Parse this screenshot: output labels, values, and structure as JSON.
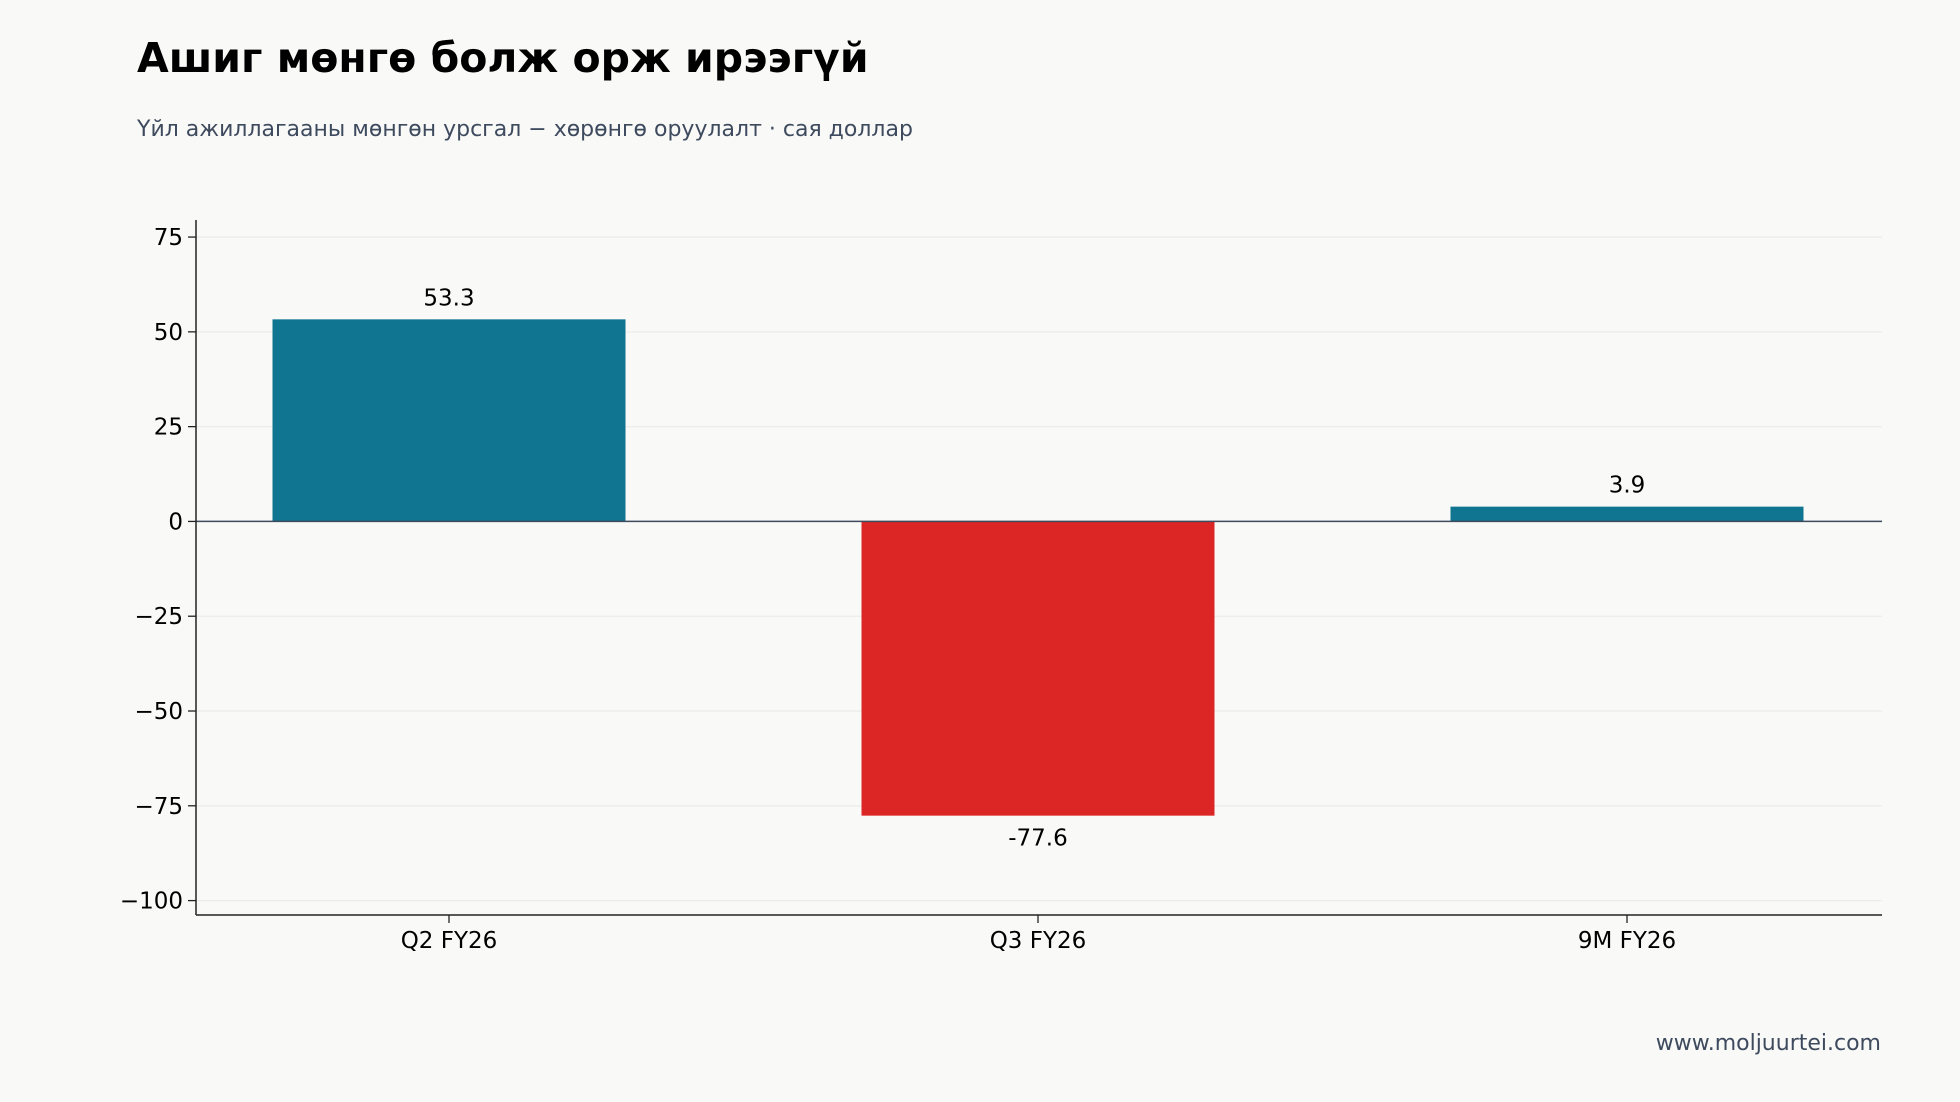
{
  "chart_data": {
    "type": "bar",
    "title": "Ашиг мөнгө болж орж ирээгүй",
    "subtitle": "Үйл ажиллагааны мөнгөн урсгал − хөрөнгө оруулалт · сая доллар",
    "categories": [
      "Q2 FY26",
      "Q3 FY26",
      "9M FY26"
    ],
    "values": [
      53.3,
      -77.6,
      3.9
    ],
    "data_labels": [
      "53.3",
      "-77.6",
      "3.9"
    ],
    "xlabel": "",
    "ylabel": "",
    "ylim": [
      -103.8,
      79.5
    ],
    "yticks": [
      75,
      50,
      25,
      0,
      -25,
      -50,
      -75,
      -100
    ],
    "ytick_labels": [
      "75",
      "50",
      "25",
      "0",
      "−25",
      "−50",
      "−75",
      "−100"
    ],
    "grid": true,
    "legend": "none",
    "colors": {
      "positive": "#107591",
      "negative": "#dc2626",
      "zero_line": "#3e4a5e",
      "grid": "#ececea",
      "axis": "#222222",
      "background": "#f9f9f7"
    }
  },
  "footer": {
    "source": "www.moljuurtei.com"
  }
}
